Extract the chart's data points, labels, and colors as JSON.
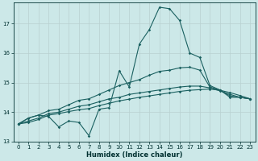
{
  "x": [
    0,
    1,
    2,
    3,
    4,
    5,
    6,
    7,
    8,
    9,
    10,
    11,
    12,
    13,
    14,
    15,
    16,
    17,
    18,
    19,
    20,
    21,
    22,
    23
  ],
  "line_main": [
    13.6,
    13.8,
    13.9,
    13.85,
    13.5,
    13.7,
    13.65,
    13.2,
    14.1,
    14.15,
    15.4,
    14.85,
    16.3,
    16.8,
    17.55,
    17.5,
    17.1,
    16.0,
    15.85,
    14.9,
    14.75,
    14.5,
    14.5,
    14.45
  ],
  "line_upper": [
    13.6,
    13.8,
    13.9,
    14.05,
    14.1,
    14.25,
    14.4,
    14.45,
    14.6,
    14.75,
    14.9,
    15.0,
    15.1,
    15.25,
    15.38,
    15.42,
    15.5,
    15.52,
    15.42,
    14.85,
    14.75,
    14.55,
    14.5,
    14.45
  ],
  "line_mid": [
    13.6,
    13.7,
    13.8,
    13.95,
    14.0,
    14.1,
    14.2,
    14.25,
    14.35,
    14.45,
    14.5,
    14.6,
    14.65,
    14.7,
    14.75,
    14.8,
    14.85,
    14.88,
    14.88,
    14.82,
    14.72,
    14.6,
    14.5,
    14.45
  ],
  "line_lower": [
    13.6,
    13.65,
    13.75,
    13.9,
    13.95,
    14.02,
    14.08,
    14.12,
    14.22,
    14.3,
    14.38,
    14.44,
    14.5,
    14.55,
    14.6,
    14.65,
    14.7,
    14.74,
    14.76,
    14.78,
    14.74,
    14.66,
    14.56,
    14.45
  ],
  "bg_color": "#cce8e8",
  "line_color": "#1a6060",
  "grid_color_major": "#b8d0d0",
  "grid_color_minor": "#d0e4e4",
  "axis_label_color": "#003030",
  "xlabel": "Humidex (Indice chaleur)",
  "ylim": [
    13.0,
    17.7
  ],
  "xlim": [
    -0.5,
    23.5
  ],
  "yticks": [
    13,
    14,
    15,
    16,
    17
  ],
  "xticks": [
    0,
    1,
    2,
    3,
    4,
    5,
    6,
    7,
    8,
    9,
    10,
    11,
    12,
    13,
    14,
    15,
    16,
    17,
    18,
    19,
    20,
    21,
    22,
    23
  ],
  "marker_size": 1.8,
  "line_width": 0.8,
  "tick_label_size": 5.0,
  "xlabel_size": 6.0
}
